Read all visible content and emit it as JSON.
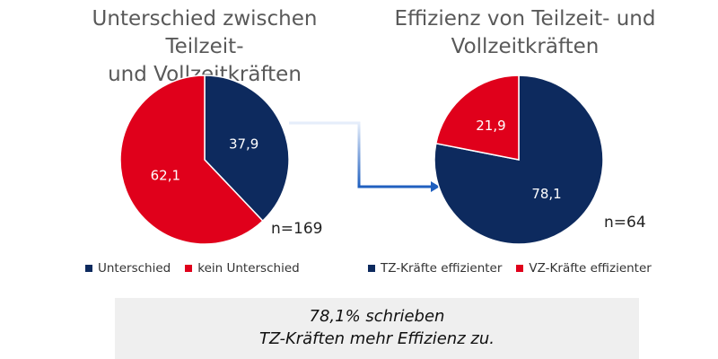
{
  "chart_data": [
    {
      "type": "pie",
      "title": "Unterschied zwischen Teilzeit- und Vollzeitkräften",
      "title_lines": [
        "Unterschied zwischen Teilzeit-",
        "und Vollzeitkräften"
      ],
      "slices": [
        {
          "name": "Unterschied",
          "value": 37.9,
          "label": "37,9",
          "color": "#0d2a5e"
        },
        {
          "name": "kein Unterschied",
          "value": 62.1,
          "label": "62,1",
          "color": "#e0001b"
        }
      ],
      "n_label": "n=169"
    },
    {
      "type": "pie",
      "title": "Effizienz von Teilzeit- und Vollzeitkräften",
      "title_lines": [
        "Effizienz von Teilzeit- und",
        "Vollzeitkräften"
      ],
      "slices": [
        {
          "name": "TZ-Kräfte effizienter",
          "value": 78.1,
          "label": "78,1",
          "color": "#0d2a5e"
        },
        {
          "name": "VZ-Kräfte effizienter",
          "value": 21.9,
          "label": "21,9",
          "color": "#e0001b"
        }
      ],
      "n_label": "n=64"
    }
  ],
  "note": {
    "line1": "78,1% schrieben",
    "line2": "TZ-Kräften mehr Effizienz zu."
  },
  "colors": {
    "navy": "#0d2a5e",
    "red": "#e0001b",
    "connector": "#1f5fbf"
  }
}
